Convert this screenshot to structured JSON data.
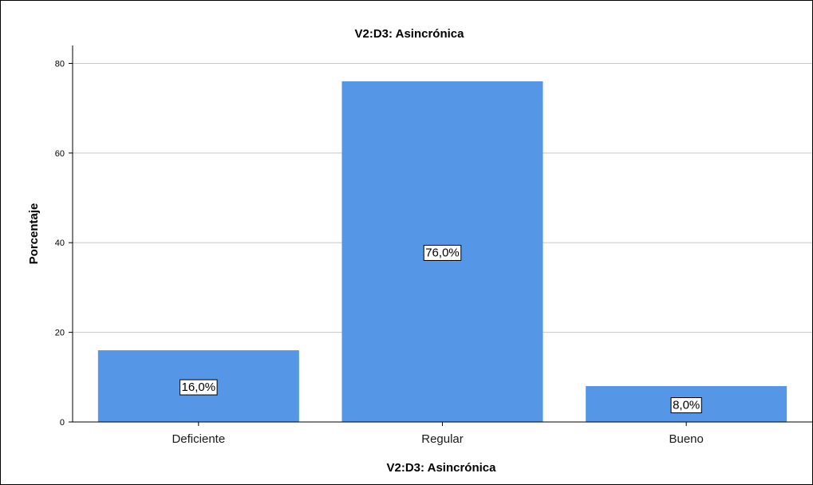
{
  "chart_data": {
    "type": "bar",
    "title": "V2:D3: Asincrónica",
    "xlabel": "V2:D3: Asincrónica",
    "ylabel": "Porcentaje",
    "categories": [
      "Deficiente",
      "Regular",
      "Bueno"
    ],
    "values": [
      16.0,
      76.0,
      8.0
    ],
    "data_labels": [
      "16,0%",
      "76,0%",
      "8,0%"
    ],
    "ylim": [
      0,
      84
    ],
    "yticks": [
      0,
      20,
      40,
      60,
      80
    ],
    "grid": true,
    "legend": "none",
    "colors": {
      "bar": "#5596e6",
      "grid": "#c8c8c8",
      "axis": "#000000",
      "background": "#ffffff"
    }
  }
}
